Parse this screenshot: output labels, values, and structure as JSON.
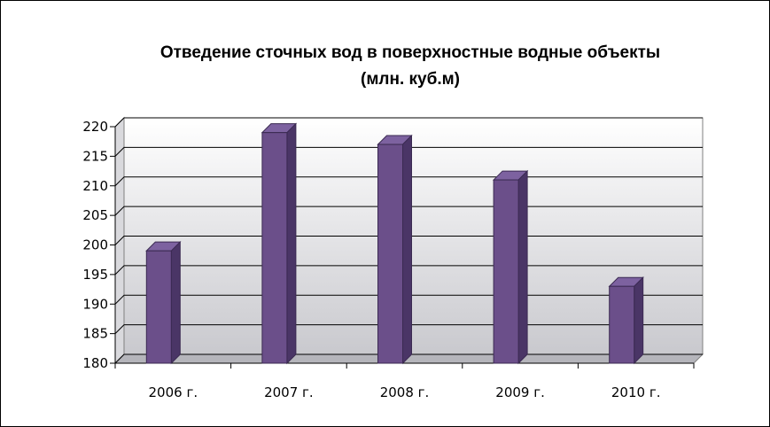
{
  "chart_data": {
    "type": "bar",
    "title_line1": "Отведение сточных вод в поверхностные водные объекты",
    "title_line2": "(млн. куб.м)",
    "categories": [
      "2006 г.",
      "2007 г.",
      "2008 г.",
      "2009 г.",
      "2010 г."
    ],
    "values": [
      199,
      219,
      217,
      211,
      193
    ],
    "ylim": [
      180,
      220
    ],
    "yticks": [
      180,
      185,
      190,
      195,
      200,
      205,
      210,
      215,
      220
    ],
    "grid": true,
    "colors": {
      "bar_front": "#6b4f8a",
      "bar_side": "#4a3566",
      "bar_top": "#7d62a0",
      "wall_top": "#ffffff",
      "wall_bottom": "#c9c9ce",
      "floor": "#b5b5bb"
    }
  }
}
